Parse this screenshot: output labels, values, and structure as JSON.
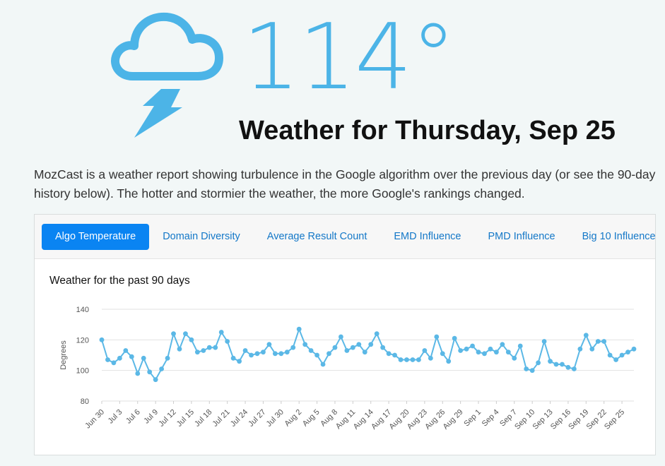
{
  "hero": {
    "temperature": "114°",
    "headline": "Weather for Thursday, Sep 25",
    "icon": "storm-cloud-icon",
    "accent": "#4cb4e7"
  },
  "intro": "MozCast is a weather report showing turbulence in the Google algorithm over the previous day (or see the 90-day history below). The hotter and stormier the weather, the more Google's rankings changed.",
  "tabs": [
    {
      "label": "Algo Temperature",
      "active": true
    },
    {
      "label": "Domain Diversity",
      "active": false
    },
    {
      "label": "Average Result Count",
      "active": false
    },
    {
      "label": "EMD Influence",
      "active": false
    },
    {
      "label": "PMD Influence",
      "active": false
    },
    {
      "label": "Big 10 Influence",
      "active": false
    }
  ],
  "chart_data": {
    "type": "line",
    "title": "Weather for the past 90 days",
    "ylabel": "Degrees",
    "xlabel": "",
    "ylim": [
      80,
      140
    ],
    "yticks": [
      80,
      100,
      120,
      140
    ],
    "grid": true,
    "color": "#5bb8e6",
    "xticklabels": [
      "Jun 30",
      "Jul 3",
      "Jul 6",
      "Jul 9",
      "Jul 12",
      "Jul 15",
      "Jul 18",
      "Jul 21",
      "Jul 24",
      "Jul 27",
      "Jul 30",
      "Aug 2",
      "Aug 5",
      "Aug 8",
      "Aug 11",
      "Aug 14",
      "Aug 17",
      "Aug 20",
      "Aug 23",
      "Aug 26",
      "Aug 29",
      "Sep 1",
      "Sep 4",
      "Sep 7",
      "Sep 10",
      "Sep 13",
      "Sep 16",
      "Sep 19",
      "Sep 22",
      "Sep 25"
    ],
    "series": [
      {
        "values": [
          120,
          107,
          105,
          108,
          113,
          109,
          98,
          108,
          99,
          94,
          101,
          108,
          124,
          114,
          124,
          120,
          112,
          113,
          115,
          115,
          125,
          119,
          108,
          106,
          113,
          110,
          111,
          112,
          117,
          111,
          111,
          112,
          115,
          127,
          117,
          113,
          110,
          104,
          111,
          115,
          122,
          113,
          115,
          117,
          112,
          117,
          124,
          115,
          111,
          110,
          107,
          107,
          107,
          107,
          113,
          108,
          122,
          111,
          106,
          121,
          113,
          114,
          116,
          112,
          111,
          114,
          112,
          117,
          112,
          108,
          116,
          101,
          100,
          105,
          119,
          106,
          104,
          104,
          102,
          101,
          114,
          123,
          114,
          119,
          119,
          110,
          107,
          110,
          112,
          114
        ]
      }
    ]
  }
}
